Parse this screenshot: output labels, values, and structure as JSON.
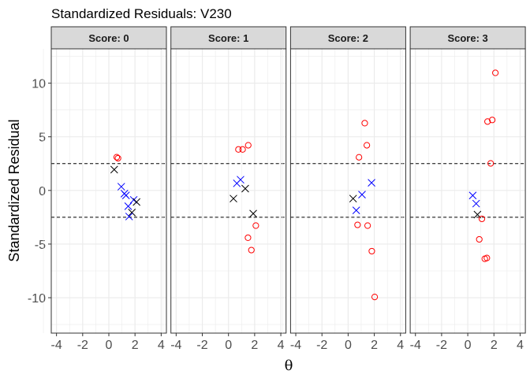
{
  "chart_data": {
    "type": "scatter",
    "title": "Standardized Residuals: V230",
    "xlabel": "θ",
    "ylabel": "Standardized Residual",
    "xlim": [
      -4.4,
      4.4
    ],
    "ylim": [
      -13.3,
      13.2
    ],
    "x_ticks": [
      -4,
      -2,
      0,
      2,
      4
    ],
    "y_ticks": [
      -10,
      -5,
      0,
      5,
      10
    ],
    "grid": true,
    "reference_lines_y": [
      -2.5,
      2.5
    ],
    "colors": {
      "circle": "#FF0000",
      "cross_blue": "#0000FF",
      "cross_black": "#000000"
    },
    "panels": [
      {
        "label": "Score: 0",
        "points": [
          {
            "x": 0.6,
            "y": 3.1,
            "shape": "circle",
            "color": "#FF0000"
          },
          {
            "x": 0.7,
            "y": 3.0,
            "shape": "circle",
            "color": "#FF0000"
          },
          {
            "x": 0.41,
            "y": 1.94,
            "shape": "cross",
            "color": "#000000"
          },
          {
            "x": 0.95,
            "y": 0.35,
            "shape": "cross",
            "color": "#0000FF"
          },
          {
            "x": 1.19,
            "y": -0.3,
            "shape": "cross",
            "color": "#0000FF"
          },
          {
            "x": 1.31,
            "y": -0.46,
            "shape": "cross",
            "color": "#0000FF"
          },
          {
            "x": 1.9,
            "y": -0.88,
            "shape": "cross",
            "color": "#0000FF"
          },
          {
            "x": 2.12,
            "y": -1.08,
            "shape": "cross",
            "color": "#000000"
          },
          {
            "x": 1.48,
            "y": -1.47,
            "shape": "cross",
            "color": "#0000FF"
          },
          {
            "x": 1.76,
            "y": -2.06,
            "shape": "cross",
            "color": "#000000"
          },
          {
            "x": 1.55,
            "y": -2.43,
            "shape": "cross",
            "color": "#0000FF"
          }
        ]
      },
      {
        "label": "Score: 1",
        "points": [
          {
            "x": 0.76,
            "y": 3.82,
            "shape": "circle",
            "color": "#FF0000"
          },
          {
            "x": 1.08,
            "y": 3.82,
            "shape": "circle",
            "color": "#FF0000"
          },
          {
            "x": 1.51,
            "y": 4.21,
            "shape": "circle",
            "color": "#FF0000"
          },
          {
            "x": 0.92,
            "y": 1.0,
            "shape": "cross",
            "color": "#0000FF"
          },
          {
            "x": 0.64,
            "y": 0.66,
            "shape": "cross",
            "color": "#0000FF"
          },
          {
            "x": 1.28,
            "y": 0.17,
            "shape": "cross",
            "color": "#000000"
          },
          {
            "x": 0.38,
            "y": -0.76,
            "shape": "cross",
            "color": "#000000"
          },
          {
            "x": 1.89,
            "y": -2.16,
            "shape": "cross",
            "color": "#000000"
          },
          {
            "x": 2.09,
            "y": -3.28,
            "shape": "circle",
            "color": "#FF0000"
          },
          {
            "x": 1.49,
            "y": -4.41,
            "shape": "circle",
            "color": "#FF0000"
          },
          {
            "x": 1.75,
            "y": -5.56,
            "shape": "circle",
            "color": "#FF0000"
          }
        ]
      },
      {
        "label": "Score: 2",
        "points": [
          {
            "x": 1.27,
            "y": 6.27,
            "shape": "circle",
            "color": "#FF0000"
          },
          {
            "x": 1.43,
            "y": 4.21,
            "shape": "circle",
            "color": "#FF0000"
          },
          {
            "x": 0.83,
            "y": 3.09,
            "shape": "circle",
            "color": "#FF0000"
          },
          {
            "x": 1.79,
            "y": 0.71,
            "shape": "cross",
            "color": "#0000FF"
          },
          {
            "x": 1.06,
            "y": -0.39,
            "shape": "cross",
            "color": "#0000FF"
          },
          {
            "x": 0.38,
            "y": -0.76,
            "shape": "cross",
            "color": "#000000"
          },
          {
            "x": 0.62,
            "y": -1.86,
            "shape": "cross",
            "color": "#0000FF"
          },
          {
            "x": 0.72,
            "y": -3.21,
            "shape": "circle",
            "color": "#FF0000"
          },
          {
            "x": 1.49,
            "y": -3.28,
            "shape": "circle",
            "color": "#FF0000"
          },
          {
            "x": 1.81,
            "y": -5.66,
            "shape": "circle",
            "color": "#FF0000"
          },
          {
            "x": 2.03,
            "y": -9.93,
            "shape": "circle",
            "color": "#FF0000"
          }
        ]
      },
      {
        "label": "Score: 3",
        "points": [
          {
            "x": 2.11,
            "y": 10.96,
            "shape": "circle",
            "color": "#FF0000"
          },
          {
            "x": 1.51,
            "y": 6.42,
            "shape": "circle",
            "color": "#FF0000"
          },
          {
            "x": 1.87,
            "y": 6.57,
            "shape": "circle",
            "color": "#FF0000"
          },
          {
            "x": 1.75,
            "y": 2.52,
            "shape": "circle",
            "color": "#FF0000"
          },
          {
            "x": 0.38,
            "y": -0.47,
            "shape": "cross",
            "color": "#0000FF"
          },
          {
            "x": 0.64,
            "y": -1.23,
            "shape": "cross",
            "color": "#0000FF"
          },
          {
            "x": 0.74,
            "y": -2.25,
            "shape": "cross",
            "color": "#000000"
          },
          {
            "x": 1.08,
            "y": -2.65,
            "shape": "circle",
            "color": "#FF0000"
          },
          {
            "x": 0.88,
            "y": -4.56,
            "shape": "circle",
            "color": "#FF0000"
          },
          {
            "x": 1.3,
            "y": -6.37,
            "shape": "circle",
            "color": "#FF0000"
          },
          {
            "x": 1.46,
            "y": -6.3,
            "shape": "circle",
            "color": "#FF0000"
          }
        ]
      }
    ]
  }
}
